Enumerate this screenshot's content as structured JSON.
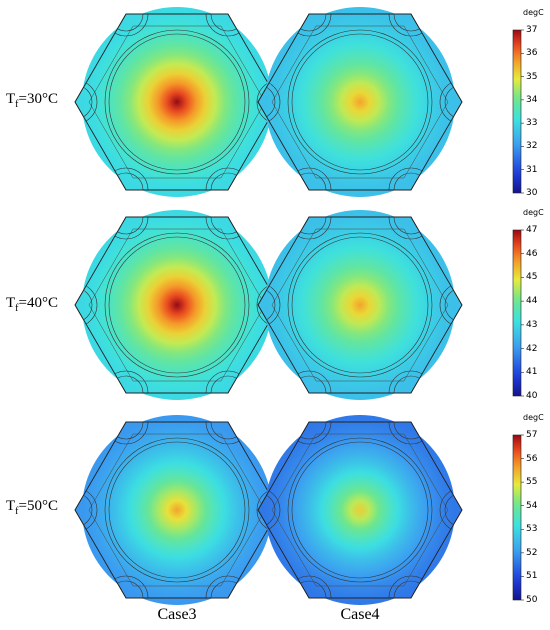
{
  "rows": [
    {
      "label_main": "T",
      "label_sub": "f",
      "label_rest": "=30°C",
      "colorbar": {
        "unit": "degC",
        "min": 30,
        "max": 37,
        "ticks": [
          "37",
          "36",
          "35",
          "34",
          "33",
          "32",
          "31",
          "30"
        ]
      },
      "panels": [
        {
          "case": "Case3",
          "center_temp": 37.0,
          "background_temp": 33.0
        },
        {
          "case": "Case4",
          "center_temp": 35.6,
          "background_temp": 32.6
        }
      ]
    },
    {
      "label_main": "T",
      "label_sub": "f",
      "label_rest": "=40°C",
      "colorbar": {
        "unit": "degC",
        "min": 40,
        "max": 47,
        "ticks": [
          "47",
          "46",
          "45",
          "44",
          "43",
          "42",
          "41",
          "40"
        ]
      },
      "panels": [
        {
          "case": "Case3",
          "center_temp": 47.0,
          "background_temp": 43.0
        },
        {
          "case": "Case4",
          "center_temp": 45.6,
          "background_temp": 42.6
        }
      ]
    },
    {
      "label_main": "T",
      "label_sub": "f",
      "label_rest": "=50°C",
      "colorbar": {
        "unit": "degC",
        "min": 50,
        "max": 57,
        "ticks": [
          "57",
          "56",
          "55",
          "54",
          "53",
          "52",
          "51",
          "50"
        ]
      },
      "panels": [
        {
          "case": "Case3",
          "center_temp": 55.6,
          "background_temp": 52.0
        },
        {
          "case": "Case4",
          "center_temp": 55.2,
          "background_temp": 51.6
        }
      ]
    }
  ],
  "columns": [
    "Case3",
    "Case4"
  ],
  "colormap": "rainbow"
}
